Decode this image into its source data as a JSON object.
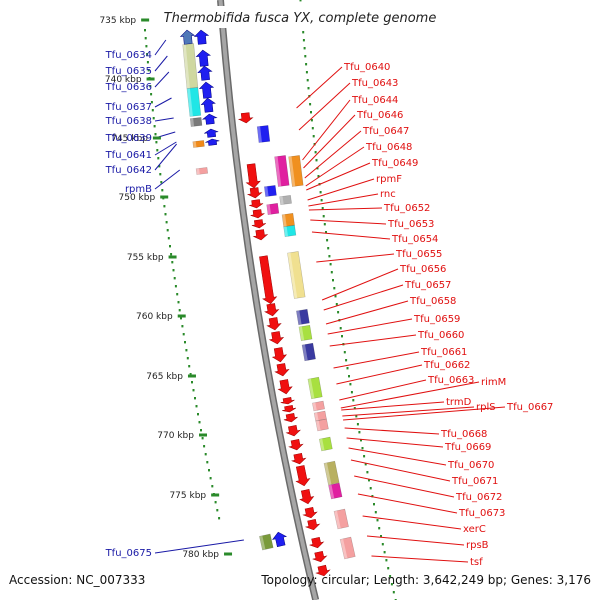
{
  "title": "Thermobifida fusca YX, complete genome",
  "footer": {
    "accession": "Accession: NC_007333",
    "summary": "Topology: circular; Length: 3,642,249 bp; Genes: 3,176"
  },
  "colors": {
    "backbone": "#8c8c8c",
    "forward_label": "#1a1aa6",
    "reverse_label": "#e01010",
    "tick_dots": "#2a8a2a",
    "tick_marks": "#2a8a2a"
  },
  "ticks": [
    "735 kbp",
    "740 kbp",
    "745 kbp",
    "750 kbp",
    "755 kbp",
    "760 kbp",
    "765 kbp",
    "770 kbp",
    "775 kbp",
    "780 kbp"
  ],
  "forward_genes": [
    "Tfu_0634",
    "Tfu_0635",
    "Tfu_0636",
    "Tfu_0637",
    "Tfu_0638",
    "Tfu_0639",
    "Tfu_0641",
    "Tfu_0642",
    "rpmB",
    "Tfu_0675"
  ],
  "reverse_genes": [
    "Tfu_0640",
    "Tfu_0643",
    "Tfu_0644",
    "Tfu_0646",
    "Tfu_0647",
    "Tfu_0648",
    "Tfu_0649",
    "rpmF",
    "rnc",
    "Tfu_0652",
    "Tfu_0653",
    "Tfu_0654",
    "Tfu_0655",
    "Tfu_0656",
    "Tfu_0657",
    "Tfu_0658",
    "Tfu_0659",
    "Tfu_0660",
    "Tfu_0661",
    "Tfu_0662",
    "Tfu_0663",
    "rimM",
    "trmD",
    "rplS",
    "Tfu_0667",
    "Tfu_0668",
    "Tfu_0669",
    "Tfu_0670",
    "Tfu_0671",
    "Tfu_0672",
    "Tfu_0673",
    "xerC",
    "rpsB",
    "tsf"
  ]
}
